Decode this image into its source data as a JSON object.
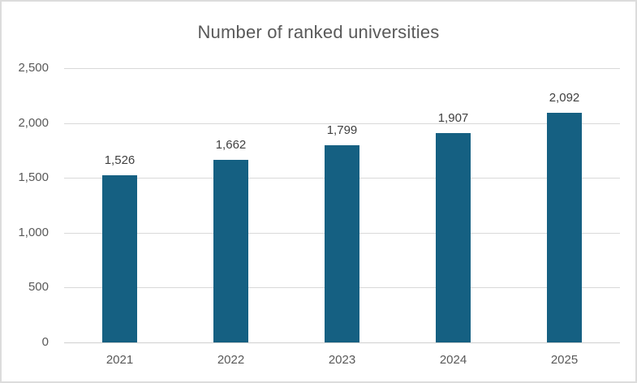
{
  "chart_data": {
    "type": "bar",
    "title": "Number of ranked universities",
    "categories": [
      "2021",
      "2022",
      "2023",
      "2024",
      "2025"
    ],
    "values": [
      1526,
      1662,
      1799,
      1907,
      2092
    ],
    "data_labels": [
      "1,526",
      "1,662",
      "1,799",
      "1,907",
      "2,092"
    ],
    "xlabel": "",
    "ylabel": "",
    "ylim": [
      0,
      2500
    ],
    "ytick_step": 500,
    "ytick_labels": [
      "0",
      "500",
      "1,000",
      "1,500",
      "2,000",
      "2,500"
    ],
    "grid": true,
    "legend_position": "none"
  },
  "colors": {
    "bar": "#156082",
    "title_text": "#595959",
    "axis_text": "#595959",
    "data_label_text": "#404040",
    "gridline": "#d9d9d9",
    "axis_line": "#d0d0d0",
    "background": "#ffffff",
    "border": "#dcdcdc"
  }
}
